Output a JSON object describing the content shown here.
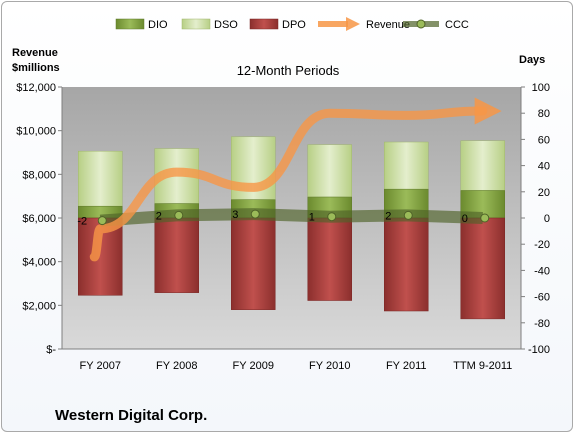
{
  "chart_data": {
    "type": "bar",
    "title": "12-Month Periods",
    "company": "Western Digital Corp.",
    "left_axis_title": [
      "Revenue",
      "$millions"
    ],
    "right_axis_title": "Days",
    "categories": [
      "FY 2007",
      "FY 2008",
      "FY 2009",
      "FY 2010",
      "FY 2011",
      "TTM 9-2011"
    ],
    "left_ticks": [
      "$-",
      "$2,000",
      "$4,000",
      "$6,000",
      "$8,000",
      "$10,000",
      "$12,000"
    ],
    "right_ticks": [
      "-100",
      "-80",
      "-60",
      "-40",
      "-20",
      "0",
      "20",
      "40",
      "60",
      "80",
      "100"
    ],
    "ylim_left": [
      0,
      12000
    ],
    "ylim_right": [
      -100,
      100
    ],
    "legend": [
      "DIO",
      "DSO",
      "DPO",
      "Revenue",
      "CCC"
    ],
    "series": [
      {
        "name": "DIO",
        "axis": "right",
        "values": [
          9,
          11,
          14,
          16,
          22,
          21
        ],
        "color": "#77933c"
      },
      {
        "name": "DSO",
        "axis": "right",
        "values": [
          42,
          42,
          48,
          40,
          36,
          38
        ],
        "color": "#c3d69b"
      },
      {
        "name": "DPO",
        "axis": "right",
        "values": [
          -59,
          -57,
          -70,
          -63,
          -71,
          -77
        ],
        "color": "#953735"
      },
      {
        "name": "Revenue",
        "axis": "left",
        "values": [
          5500,
          8100,
          7400,
          10800,
          10700,
          10900
        ],
        "color": "#f79646"
      },
      {
        "name": "CCC",
        "axis": "right",
        "values": [
          -2,
          2,
          3,
          1,
          2,
          0
        ],
        "color": "#4f6228"
      }
    ],
    "ccc_labels": [
      "-2",
      "2",
      "3",
      "1",
      "2",
      "0"
    ],
    "plot_background": "#bfbfbf",
    "grid": false,
    "legend_position": "top"
  }
}
